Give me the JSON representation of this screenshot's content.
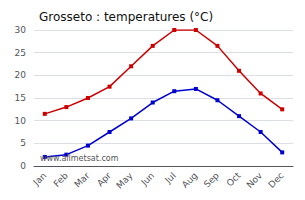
{
  "chart_data": {
    "type": "line",
    "title": "Grosseto : temperatures (°C)",
    "categories": [
      "Jan",
      "Feb",
      "Mar",
      "Apr",
      "May",
      "Jun",
      "Jul",
      "Aug",
      "Sep",
      "Oct",
      "Nov",
      "Dec"
    ],
    "series": [
      {
        "color": "#cc0000",
        "values": [
          11.5,
          13,
          15,
          17.5,
          22,
          26.5,
          30,
          30,
          26.5,
          21,
          16,
          12.5
        ]
      },
      {
        "color": "#0000cc",
        "values": [
          2,
          2.5,
          4.5,
          7.5,
          10.5,
          14,
          16.5,
          17,
          14.5,
          11,
          7.5,
          3
        ]
      }
    ],
    "marker": "square",
    "ylim": [
      0,
      30
    ],
    "yticks": [
      0,
      5,
      10,
      15,
      20,
      25,
      30
    ],
    "grid": true,
    "annotation": "www.allmetsat.com"
  }
}
